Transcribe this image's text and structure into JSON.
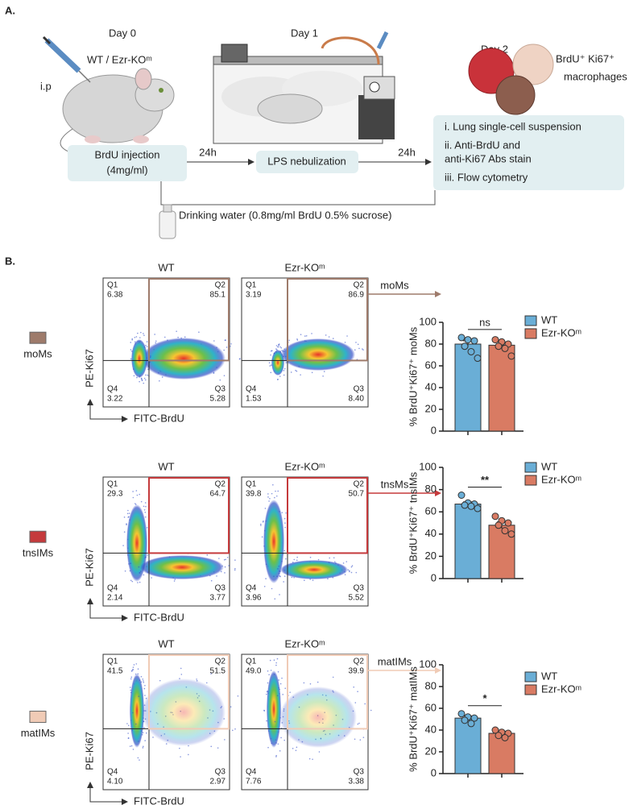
{
  "panel_a": {
    "letter": "A.",
    "day0": "Day 0",
    "day1": "Day 1",
    "day2": "Day 2",
    "mouse_label": "WT / Ezr-KOᵐ",
    "route": "i.p",
    "injection": [
      "BrdU injection",
      "(4mg/ml)"
    ],
    "interval_1": "24h",
    "nebulization": "LPS nebulization",
    "interval_2": "24h",
    "cells": [
      "BrdU⁺ Ki67⁺",
      "macrophages"
    ],
    "steps": [
      "i. Lung single-cell suspension",
      "ii. Anti-BrdU and",
      "anti-Ki67 Abs stain",
      "iii. Flow cytometry"
    ],
    "drinking": "Drinking water (0.8mg/ml BrdU 0.5% sucrose)"
  },
  "panel_b": {
    "letter": "B.",
    "y_axis": "PE-Ki67",
    "x_axis": "FITC-BrdU",
    "rows": [
      {
        "label": "moMs",
        "arrow_label": "moMs",
        "color": "#9e7b6b",
        "plots": [
          {
            "title": "WT",
            "quadrants": [
              {
                "name": "Q1",
                "value": "6.38"
              },
              {
                "name": "Q2",
                "value": "85.1"
              },
              {
                "name": "Q3",
                "value": "5.28"
              },
              {
                "name": "Q4",
                "value": "3.22"
              }
            ]
          },
          {
            "title": "Ezr-KOᵐ",
            "quadrants": [
              {
                "name": "Q1",
                "value": "3.19"
              },
              {
                "name": "Q2",
                "value": "86.9"
              },
              {
                "name": "Q3",
                "value": "8.40"
              },
              {
                "name": "Q4",
                "value": "1.53"
              }
            ]
          }
        ]
      },
      {
        "label": "tnsIMs",
        "arrow_label": "tnsMs",
        "color": "#c53a3c",
        "plots": [
          {
            "title": "WT",
            "quadrants": [
              {
                "name": "Q1",
                "value": "29.3"
              },
              {
                "name": "Q2",
                "value": "64.7"
              },
              {
                "name": "Q3",
                "value": "3.77"
              },
              {
                "name": "Q4",
                "value": "2.14"
              }
            ]
          },
          {
            "title": "Ezr-KOᵐ",
            "quadrants": [
              {
                "name": "Q1",
                "value": "39.8"
              },
              {
                "name": "Q2",
                "value": "50.7"
              },
              {
                "name": "Q3",
                "value": "5.52"
              },
              {
                "name": "Q4",
                "value": "3.96"
              }
            ]
          }
        ]
      },
      {
        "label": "matIMs",
        "arrow_label": "matIMs",
        "color": "#f0cbb6",
        "plots": [
          {
            "title": "WT",
            "quadrants": [
              {
                "name": "Q1",
                "value": "41.5"
              },
              {
                "name": "Q2",
                "value": "51.5"
              },
              {
                "name": "Q3",
                "value": "2.97"
              },
              {
                "name": "Q4",
                "value": "4.10"
              }
            ]
          },
          {
            "title": "Ezr-KOᵐ",
            "quadrants": [
              {
                "name": "Q1",
                "value": "49.0"
              },
              {
                "name": "Q2",
                "value": "39.9"
              },
              {
                "name": "Q3",
                "value": "3.38"
              },
              {
                "name": "Q4",
                "value": "7.76"
              }
            ]
          }
        ]
      }
    ]
  },
  "chart_data": [
    {
      "type": "bar",
      "ylabel": "% BrdU⁺Ki67⁺ moMs",
      "annotation": "ns",
      "ylim": [
        0,
        100
      ],
      "yticks": [
        0,
        20,
        40,
        60,
        80,
        100
      ],
      "series": [
        {
          "name": "WT",
          "color": "#6aaed6",
          "values": [
            80
          ],
          "errors": [
            3
          ],
          "points": [
            86,
            84,
            83,
            78,
            73,
            67
          ]
        },
        {
          "name": "Ezr-KOᵐ",
          "color": "#d97b63",
          "values": [
            79
          ],
          "errors": [
            3
          ],
          "points": [
            84,
            82,
            80,
            78,
            76,
            69
          ]
        }
      ]
    },
    {
      "type": "bar",
      "ylabel": "% BrdU⁺Ki67⁺ tnsIMs",
      "annotation": "**",
      "ylim": [
        0,
        100
      ],
      "yticks": [
        0,
        20,
        40,
        60,
        80,
        100
      ],
      "series": [
        {
          "name": "WT",
          "color": "#6aaed6",
          "values": [
            67
          ],
          "errors": [
            2
          ],
          "points": [
            75,
            68,
            67,
            66,
            65,
            63
          ]
        },
        {
          "name": "Ezr-KOᵐ",
          "color": "#d97b63",
          "values": [
            48
          ],
          "errors": [
            3
          ],
          "points": [
            56,
            52,
            50,
            48,
            43,
            40
          ]
        }
      ]
    },
    {
      "type": "bar",
      "ylabel": "% BrdU⁺Ki67⁺ matIMs",
      "annotation": "*",
      "ylim": [
        0,
        100
      ],
      "yticks": [
        0,
        20,
        40,
        60,
        80,
        100
      ],
      "series": [
        {
          "name": "WT",
          "color": "#6aaed6",
          "values": [
            51
          ],
          "errors": [
            2
          ],
          "points": [
            55,
            52,
            51,
            49,
            46
          ]
        },
        {
          "name": "Ezr-KOᵐ",
          "color": "#d97b63",
          "values": [
            37
          ],
          "errors": [
            2
          ],
          "points": [
            40,
            38,
            37,
            35,
            33
          ]
        }
      ]
    }
  ]
}
